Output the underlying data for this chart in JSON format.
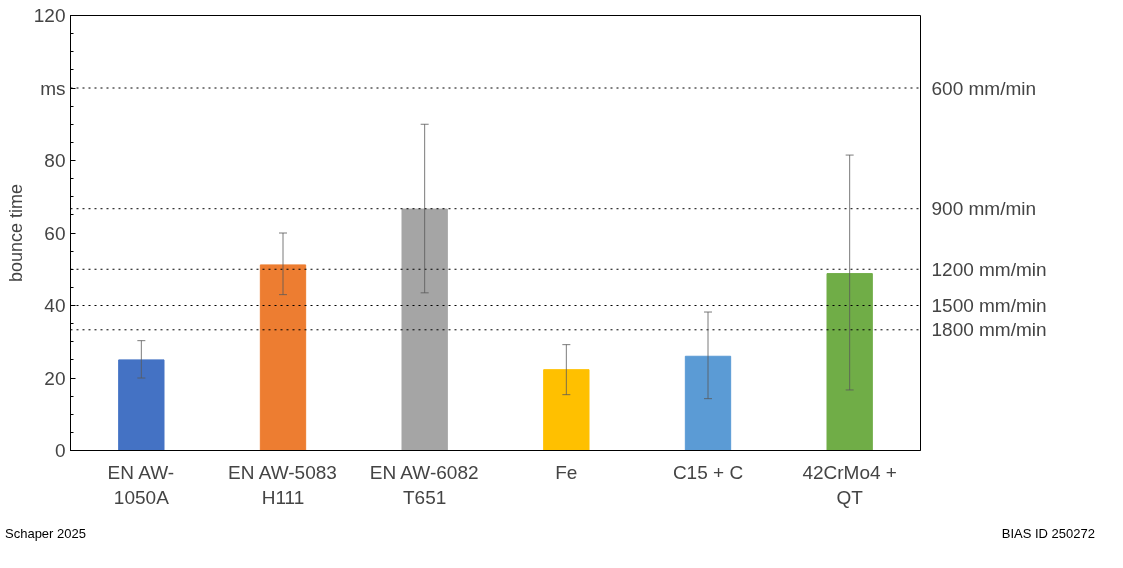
{
  "chart_data": {
    "type": "bar",
    "ylabel": "bounce time",
    "categories": [
      "EN AW-\n1050A",
      "EN AW-5083\nH111",
      "EN AW-6082\nT651",
      "Fe",
      "C15 + C",
      "42CrMo4 +\nQT"
    ],
    "values": [
      25,
      51.2,
      66.6,
      22.3,
      26,
      48.8
    ],
    "colors": [
      "#4472c4",
      "#ed7d31",
      "#a5a5a5",
      "#ffc000",
      "#5b9bd5",
      "#70ad47"
    ],
    "errors": [
      [
        20,
        30.3
      ],
      [
        43,
        60
      ],
      [
        43.5,
        90
      ],
      [
        15.4,
        29.2
      ],
      [
        14.3,
        38.2
      ],
      [
        16.7,
        81.5
      ]
    ],
    "ylim": [
      0,
      120
    ],
    "yticks": [
      0,
      20,
      40,
      60,
      80,
      {
        "value": 100,
        "label": "ms"
      },
      120
    ],
    "grid": false,
    "ref_lines": [
      {
        "axis": "y",
        "value": 100,
        "label": "600 mm/min",
        "color": "#000000",
        "line_style": "dotted"
      },
      {
        "axis": "y",
        "value": 66.7,
        "label": "900 mm/min",
        "color": "#000000",
        "line_style": "dotted"
      },
      {
        "axis": "y",
        "value": 50,
        "label": "1200 mm/min",
        "color": "#000000",
        "line_style": "dotted"
      },
      {
        "axis": "y",
        "value": 40,
        "label": "1500 mm/min",
        "color": "#000000",
        "line_style": "dotted"
      },
      {
        "axis": "y",
        "value": 33.3,
        "label": "1800 mm/min",
        "color": "#000000",
        "line_style": "dotted"
      }
    ],
    "annotations": [
      "Schaper 2025",
      "BIAS ID 250272"
    ]
  }
}
